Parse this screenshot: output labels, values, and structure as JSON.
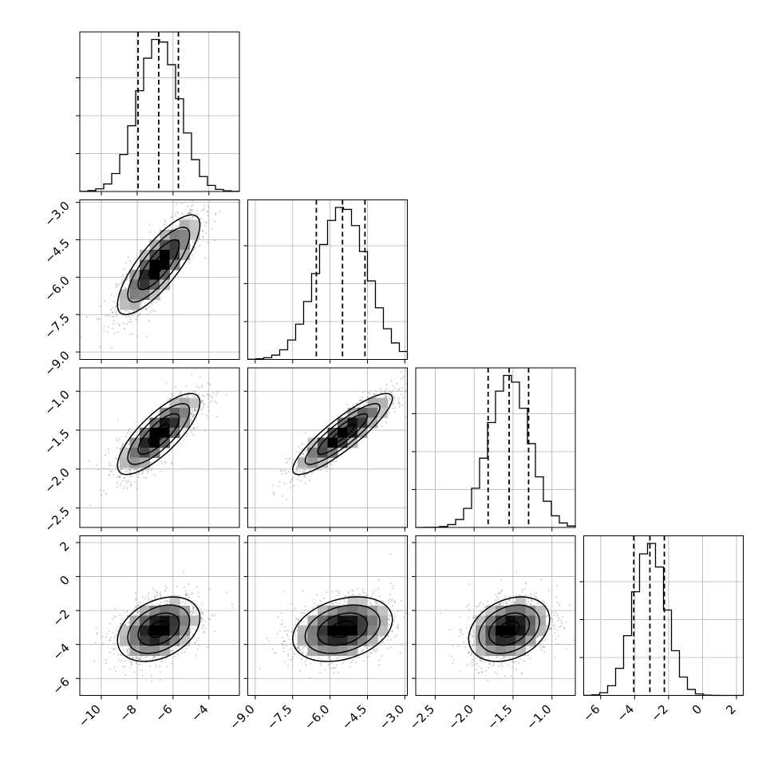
{
  "chart_data": {
    "type": "corner",
    "n_params": 4,
    "params": [
      {
        "center": -6.8,
        "q16": -7.95,
        "q84": -5.7,
        "range": [
          -11.2,
          -2.3
        ],
        "sigma": 1.15,
        "ticks": [
          -10,
          -8,
          -6,
          -4
        ],
        "tick_labels": [
          "−10",
          "−8",
          "−6",
          "−4"
        ]
      },
      {
        "center": -5.5,
        "q16": -6.55,
        "q84": -4.6,
        "range": [
          -9.3,
          -2.9
        ],
        "sigma": 1.0,
        "ticks": [
          -9.0,
          -7.5,
          -6.0,
          -4.5,
          -3.0
        ],
        "tick_labels": [
          "−9.0",
          "−7.5",
          "−6.0",
          "−4.5",
          "−3.0"
        ]
      },
      {
        "center": -1.55,
        "q16": -1.82,
        "q84": -1.3,
        "range": [
          -2.75,
          -0.7
        ],
        "sigma": 0.26,
        "ticks": [
          -2.5,
          -2.0,
          -1.5,
          -1.0
        ],
        "tick_labels": [
          "−2.5",
          "−2.0",
          "−1.5",
          "−1.0"
        ]
      },
      {
        "center": -3.1,
        "q16": -4.05,
        "q84": -2.25,
        "range": [
          -7.0,
          2.4
        ],
        "sigma": 0.95,
        "ticks": [
          -6,
          -4,
          -2,
          0,
          2
        ],
        "tick_labels": [
          "−6",
          "−4",
          "−2",
          "0",
          "2"
        ]
      }
    ],
    "correlations": [
      {
        "i": 1,
        "j": 0,
        "rho": 0.8
      },
      {
        "i": 2,
        "j": 0,
        "rho": 0.78
      },
      {
        "i": 2,
        "j": 1,
        "rho": 0.88
      },
      {
        "i": 3,
        "j": 0,
        "rho": 0.35
      },
      {
        "i": 3,
        "j": 1,
        "rho": 0.3
      },
      {
        "i": 3,
        "j": 2,
        "rho": 0.3
      }
    ],
    "histogram_bins": 20,
    "contour_levels": [
      0.5,
      1.0,
      1.5,
      2.0
    ],
    "grid": true,
    "title": "",
    "colors": {
      "density": "#000000",
      "contour": "#000000",
      "grid": "#b0b0b0"
    }
  }
}
